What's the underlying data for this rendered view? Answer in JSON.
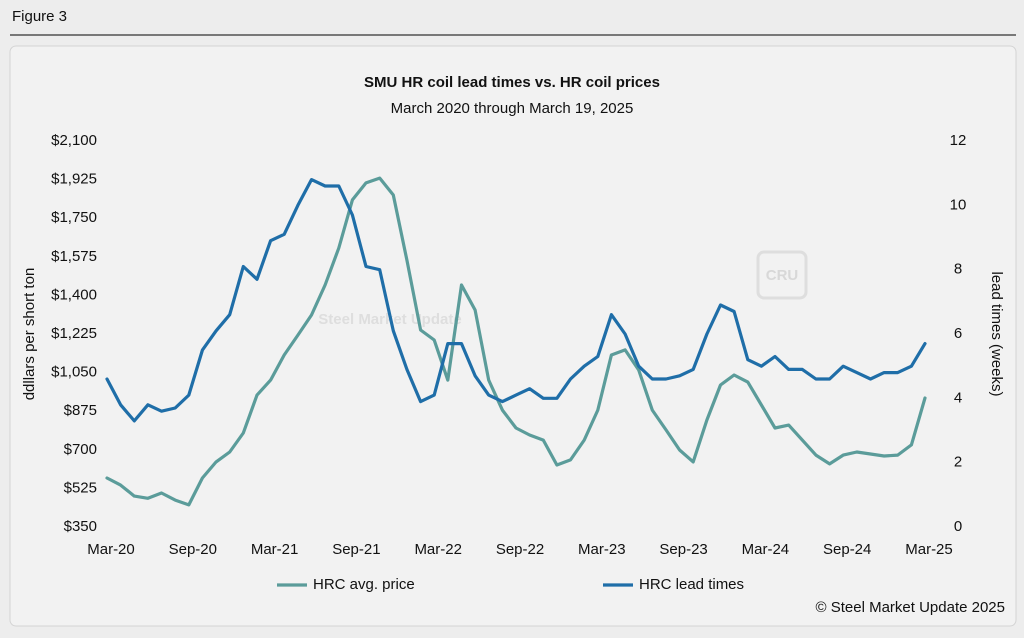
{
  "figure_label": "Figure 3",
  "chart_data": {
    "type": "line",
    "title": "SMU HR coil lead times vs. HR coil prices",
    "subtitle": "March 2020 through March 19, 2025",
    "y_label": "ddllars per short ton",
    "y2_label": "lead times (weeks)",
    "watermark": "Steel Market Update",
    "watermark2": "CRU",
    "footer": "© Steel Market Update 2025",
    "categories": [
      "Mar-20",
      null,
      null,
      null,
      null,
      null,
      "Sep-20",
      null,
      null,
      null,
      null,
      null,
      "Mar-21",
      null,
      null,
      null,
      null,
      null,
      "Sep-21",
      null,
      null,
      null,
      null,
      null,
      "Mar-22",
      null,
      null,
      null,
      null,
      null,
      "Sep-22",
      null,
      null,
      null,
      null,
      null,
      "Mar-23",
      null,
      null,
      null,
      null,
      null,
      "Sep-23",
      null,
      null,
      null,
      null,
      null,
      "Mar-24",
      null,
      null,
      null,
      null,
      null,
      "Sep-24",
      null,
      null,
      null,
      null,
      null,
      "Mar-25"
    ],
    "ylim": [
      350,
      2100
    ],
    "yticks": [
      {
        "value": 350,
        "label": "$350"
      },
      {
        "value": 525,
        "label": "$525"
      },
      {
        "value": 700,
        "label": "$700"
      },
      {
        "value": 875,
        "label": "$875"
      },
      {
        "value": 1050,
        "label": "$1,050"
      },
      {
        "value": 1225,
        "label": "$1,225"
      },
      {
        "value": 1400,
        "label": "$1,400"
      },
      {
        "value": 1575,
        "label": "$1,575"
      },
      {
        "value": 1750,
        "label": "$1,750"
      },
      {
        "value": 1925,
        "label": "$1,925"
      },
      {
        "value": 2100,
        "label": "$2,100"
      }
    ],
    "y2lim": [
      0,
      12
    ],
    "y2ticks": [
      0,
      2,
      4,
      6,
      8,
      10,
      12
    ],
    "legend": "bottom",
    "series": [
      {
        "name": "HRC avg. price",
        "color": "#5b9c9a",
        "values": [
          572,
          540,
          490,
          480,
          504,
          472,
          450,
          572,
          645,
          690,
          776,
          948,
          1016,
          1130,
          1220,
          1311,
          1447,
          1615,
          1833,
          1910,
          1932,
          1855,
          1560,
          1243,
          1198,
          1016,
          1447,
          1334,
          1016,
          880,
          799,
          767,
          744,
          631,
          654,
          744,
          880,
          1130,
          1153,
          1062,
          880,
          790,
          699,
          645,
          835,
          994,
          1039,
          1007,
          903,
          799,
          812,
          744,
          676,
          636,
          676,
          690,
          681,
          672,
          676,
          722,
          935
        ]
      },
      {
        "name": "HRC lead times",
        "color": "#1f6ea8",
        "axis": "y2",
        "values": [
          4.6,
          3.8,
          3.3,
          3.8,
          3.6,
          3.7,
          4.1,
          5.5,
          6.1,
          6.6,
          8.1,
          7.7,
          8.9,
          9.1,
          10.0,
          10.8,
          10.6,
          10.6,
          9.7,
          8.1,
          8.0,
          6.1,
          4.9,
          3.9,
          4.1,
          5.7,
          5.7,
          4.7,
          4.1,
          3.9,
          4.1,
          4.3,
          4.0,
          4.0,
          4.6,
          5.0,
          5.3,
          6.6,
          6.0,
          5.0,
          4.6,
          4.6,
          4.7,
          4.9,
          6.0,
          6.9,
          6.7,
          5.2,
          5.0,
          5.3,
          4.9,
          4.9,
          4.6,
          4.6,
          5.0,
          4.8,
          4.6,
          4.8,
          4.8,
          5.0,
          5.7
        ]
      }
    ]
  }
}
